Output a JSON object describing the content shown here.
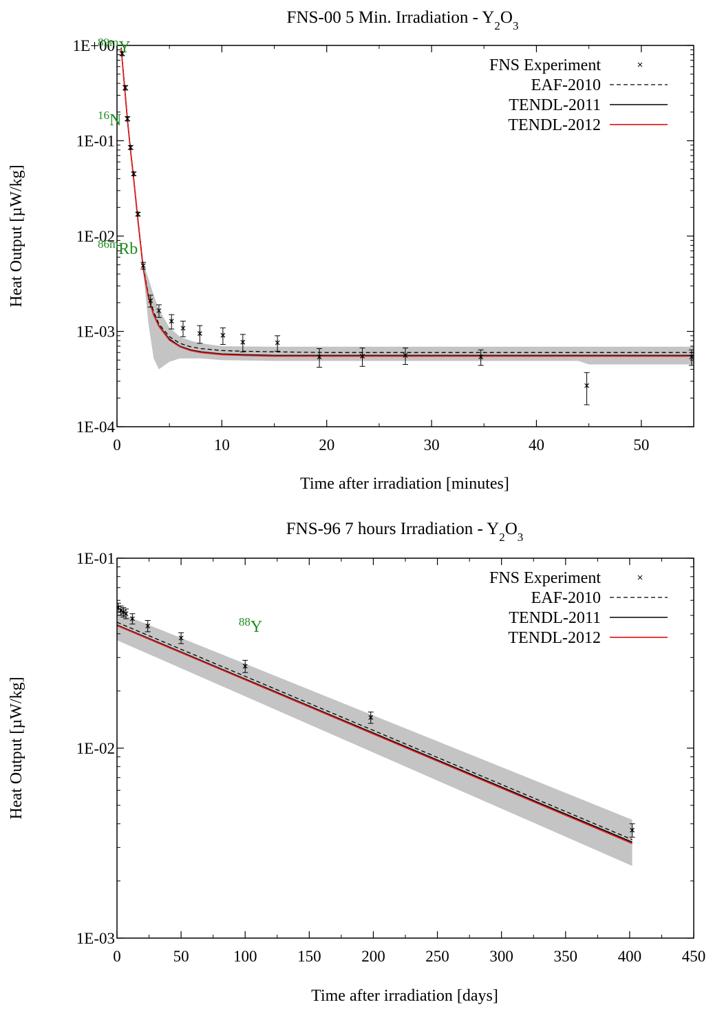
{
  "chart_data": [
    {
      "type": "line",
      "title": {
        "text": "FNS-00 5 Min. Irradiation - Y",
        "sub1": "2",
        "mid": "O",
        "sub2": "3"
      },
      "xlabel": "Time after irradiation [minutes]",
      "ylabel": "Heat Output [µW/kg]",
      "xlim": [
        0,
        55
      ],
      "ylim": [
        0.0001,
        1
      ],
      "yscale": "log",
      "grid": false,
      "legend_position": "top-right",
      "x_ticks": [
        0,
        10,
        20,
        30,
        40,
        50
      ],
      "x_tick_labels": [
        "0",
        "10",
        "20",
        "30",
        "40",
        "50"
      ],
      "y_ticks": [
        1,
        0.1,
        0.01,
        0.001,
        0.0001
      ],
      "y_tick_labels": [
        "1E+00",
        "1E-01",
        "1E-02",
        "1E-03",
        "1E-04"
      ],
      "x_minor_ticks": [
        5,
        15,
        25,
        35,
        45
      ],
      "legend": [
        {
          "label": "FNS Experiment",
          "style": "points"
        },
        {
          "label": "EAF-2010",
          "style": "dashed"
        },
        {
          "label": "TENDL-2011",
          "style": "solid-black"
        },
        {
          "label": "TENDL-2012",
          "style": "solid-red"
        }
      ],
      "annotations": [
        {
          "sup": "89m",
          "base": "Y",
          "x": 0.0,
          "y": 0.85
        },
        {
          "sup": "16",
          "base": "N",
          "x": 0.0,
          "y": 0.145
        },
        {
          "sup": "86m",
          "base": "Rb",
          "x": 0.0,
          "y": 0.0065
        }
      ],
      "experiment": [
        {
          "x": 0.5,
          "y": 0.82,
          "err": 0.04
        },
        {
          "x": 0.8,
          "y": 0.36,
          "err": 0.02
        },
        {
          "x": 1.0,
          "y": 0.17,
          "err": 0.009
        },
        {
          "x": 1.3,
          "y": 0.085,
          "err": 0.004
        },
        {
          "x": 1.6,
          "y": 0.045,
          "err": 0.002
        },
        {
          "x": 2.0,
          "y": 0.017,
          "err": 0.0008
        },
        {
          "x": 2.5,
          "y": 0.0049,
          "err": 0.0004
        },
        {
          "x": 3.2,
          "y": 0.0021,
          "err": 0.0003
        },
        {
          "x": 4.0,
          "y": 0.00165,
          "err": 0.00025
        },
        {
          "x": 5.2,
          "y": 0.00128,
          "err": 0.00022
        },
        {
          "x": 6.3,
          "y": 0.00108,
          "err": 0.0002
        },
        {
          "x": 7.9,
          "y": 0.00095,
          "err": 0.0002
        },
        {
          "x": 10.1,
          "y": 0.00091,
          "err": 0.00018
        },
        {
          "x": 12.0,
          "y": 0.00077,
          "err": 0.00016
        },
        {
          "x": 15.3,
          "y": 0.00076,
          "err": 0.00014
        },
        {
          "x": 19.3,
          "y": 0.00054,
          "err": 0.00012
        },
        {
          "x": 23.4,
          "y": 0.00055,
          "err": 0.00012
        },
        {
          "x": 27.5,
          "y": 0.00056,
          "err": 0.00011
        },
        {
          "x": 34.7,
          "y": 0.00054,
          "err": 0.0001
        },
        {
          "x": 44.8,
          "y": 0.00027,
          "err": 0.0001
        },
        {
          "x": 54.8,
          "y": 0.00054,
          "err": 0.0001
        }
      ],
      "series": [
        {
          "name": "EAF-2010",
          "x": [
            0.4,
            0.7,
            1.0,
            1.3,
            1.6,
            2.0,
            2.5,
            3.0,
            3.5,
            4.0,
            5.0,
            6.0,
            7.0,
            8.0,
            10.0,
            12.0,
            15.0,
            20.0,
            30.0,
            40.0,
            55.0
          ],
          "y": [
            0.95,
            0.4,
            0.17,
            0.08,
            0.04,
            0.015,
            0.0048,
            0.0024,
            0.0016,
            0.0012,
            0.00088,
            0.00075,
            0.00069,
            0.00066,
            0.00063,
            0.00062,
            0.00061,
            0.0006,
            0.0006,
            0.0006,
            0.0006
          ]
        },
        {
          "name": "TENDL-2011",
          "x": [
            0.4,
            0.7,
            1.0,
            1.3,
            1.6,
            2.0,
            2.5,
            3.0,
            3.5,
            4.0,
            5.0,
            6.0,
            7.0,
            8.0,
            10.0,
            12.0,
            15.0,
            20.0,
            30.0,
            40.0,
            55.0
          ],
          "y": [
            0.93,
            0.39,
            0.165,
            0.078,
            0.039,
            0.0145,
            0.0046,
            0.0023,
            0.0015,
            0.00115,
            0.00083,
            0.0007,
            0.00064,
            0.00061,
            0.00058,
            0.00057,
            0.00056,
            0.00056,
            0.00056,
            0.00056,
            0.00056
          ]
        },
        {
          "name": "TENDL-2012",
          "x": [
            0.4,
            0.7,
            1.0,
            1.3,
            1.6,
            2.0,
            2.5,
            3.0,
            3.5,
            4.0,
            5.0,
            6.0,
            7.0,
            8.0,
            10.0,
            12.0,
            15.0,
            20.0,
            30.0,
            40.0,
            55.0
          ],
          "y": [
            0.92,
            0.385,
            0.163,
            0.077,
            0.0385,
            0.0143,
            0.0045,
            0.00225,
            0.00148,
            0.00113,
            0.00081,
            0.00069,
            0.00063,
            0.0006,
            0.00057,
            0.00056,
            0.00055,
            0.00055,
            0.00055,
            0.00055,
            0.00055
          ]
        }
      ],
      "uncertainty_band": {
        "x": [
          0.4,
          1.0,
          1.6,
          2.0,
          2.5,
          3.0,
          3.5,
          4.0,
          5.0,
          6.0,
          7.0,
          8.0,
          10.0,
          15.0,
          20.0,
          30.0,
          40.0,
          44.0,
          45.0,
          55.0
        ],
        "upper": [
          1.0,
          0.18,
          0.042,
          0.016,
          0.0052,
          0.0036,
          0.0024,
          0.0017,
          0.0011,
          0.00088,
          0.0008,
          0.00075,
          0.0007,
          0.00069,
          0.00069,
          0.00069,
          0.00069,
          0.00069,
          0.00069,
          0.00069
        ],
        "lower": [
          0.85,
          0.15,
          0.035,
          0.013,
          0.0043,
          0.0012,
          0.00052,
          0.0004,
          0.00048,
          0.00052,
          0.00052,
          0.00052,
          0.0005,
          0.00049,
          0.00049,
          0.00049,
          0.00049,
          0.00049,
          0.00045,
          0.00045
        ]
      }
    },
    {
      "type": "line",
      "title": {
        "text": "FNS-96 7 hours Irradiation - Y",
        "sub1": "2",
        "mid": "O",
        "sub2": "3"
      },
      "xlabel": "Time after irradiation [days]",
      "ylabel": "Heat Output [µW/kg]",
      "xlim": [
        0,
        450
      ],
      "ylim": [
        0.001,
        0.1
      ],
      "yscale": "log",
      "grid": false,
      "legend_position": "top-right",
      "x_ticks": [
        0,
        50,
        100,
        150,
        200,
        250,
        300,
        350,
        400,
        450
      ],
      "x_tick_labels": [
        "0",
        "50",
        "100",
        "150",
        "200",
        "250",
        "300",
        "350",
        "400",
        "450"
      ],
      "y_ticks": [
        0.1,
        0.01,
        0.001
      ],
      "y_tick_labels": [
        "1E-01",
        "1E-02",
        "1E-03"
      ],
      "x_minor_ticks": [
        25,
        75,
        125,
        175,
        225,
        275,
        325,
        375,
        425
      ],
      "legend": [
        {
          "label": "FNS Experiment",
          "style": "points"
        },
        {
          "label": "EAF-2010",
          "style": "dashed"
        },
        {
          "label": "TENDL-2011",
          "style": "solid-black"
        },
        {
          "label": "TENDL-2012",
          "style": "solid-red"
        }
      ],
      "annotations": [
        {
          "sup": "88",
          "base": "Y",
          "x": 95,
          "y": 0.041
        }
      ],
      "experiment": [
        {
          "x": 1,
          "y": 0.055,
          "err": 0.003
        },
        {
          "x": 3,
          "y": 0.053,
          "err": 0.003
        },
        {
          "x": 5,
          "y": 0.052,
          "err": 0.003
        },
        {
          "x": 7,
          "y": 0.051,
          "err": 0.003
        },
        {
          "x": 12,
          "y": 0.048,
          "err": 0.003
        },
        {
          "x": 24,
          "y": 0.044,
          "err": 0.003
        },
        {
          "x": 50,
          "y": 0.038,
          "err": 0.0025
        },
        {
          "x": 100,
          "y": 0.027,
          "err": 0.002
        },
        {
          "x": 198,
          "y": 0.0145,
          "err": 0.001
        },
        {
          "x": 402,
          "y": 0.0037,
          "err": 0.0003
        }
      ],
      "series": [
        {
          "name": "EAF-2010",
          "x": [
            0,
            402
          ],
          "y": [
            0.046,
            0.0033
          ]
        },
        {
          "name": "TENDL-2011",
          "x": [
            0,
            402
          ],
          "y": [
            0.0445,
            0.0032
          ]
        },
        {
          "name": "TENDL-2012",
          "x": [
            0,
            402
          ],
          "y": [
            0.0442,
            0.00315
          ]
        }
      ],
      "uncertainty_band": {
        "x": [
          0,
          402
        ],
        "upper": [
          0.052,
          0.0042
        ],
        "lower": [
          0.037,
          0.0024
        ]
      }
    }
  ]
}
